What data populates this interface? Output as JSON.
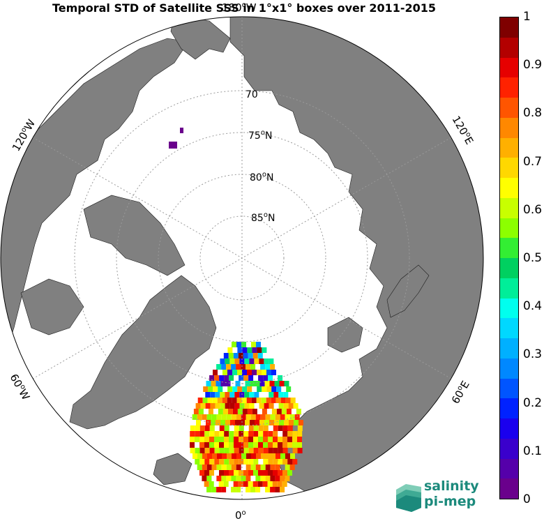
{
  "title": "Temporal STD of Satellite SSS in 1°x1° boxes over 2011-2015",
  "map": {
    "projection": "north polar stereographic",
    "lat_labels": [
      "70",
      "75",
      "80",
      "85"
    ],
    "lat_suffix": "N",
    "lon_labels": {
      "top": "180",
      "bottom": "0",
      "left_upper": "120",
      "left_lower": "60",
      "right_upper": "120",
      "right_lower": "60"
    },
    "lon_suffix": {
      "top": "W",
      "left_upper": "W",
      "left_lower": "W",
      "right_upper": "E",
      "right_lower": "E",
      "bottom": ""
    },
    "colors": {
      "land": "#808080",
      "ice": "#ffffff",
      "grid": "#9a9a9a"
    }
  },
  "colorbar": {
    "ticks": [
      "1",
      "0.9",
      "0.8",
      "0.7",
      "0.6",
      "0.5",
      "0.4",
      "0.3",
      "0.2",
      "0.1",
      "0"
    ],
    "colors": [
      "#7f0000",
      "#b30000",
      "#e60000",
      "#ff2200",
      "#ff5500",
      "#ff8800",
      "#ffb000",
      "#ffd800",
      "#ffff00",
      "#c8ff00",
      "#8cff00",
      "#33ee33",
      "#00d060",
      "#00ee99",
      "#00ffee",
      "#00d8ff",
      "#00b0ff",
      "#0088ff",
      "#0055ff",
      "#0022ff",
      "#1a00ee",
      "#3a00cc",
      "#5500aa",
      "#6a008c"
    ],
    "range": [
      0,
      1
    ]
  },
  "logo": {
    "line1": "salinity",
    "line2": "pi-mep"
  }
}
